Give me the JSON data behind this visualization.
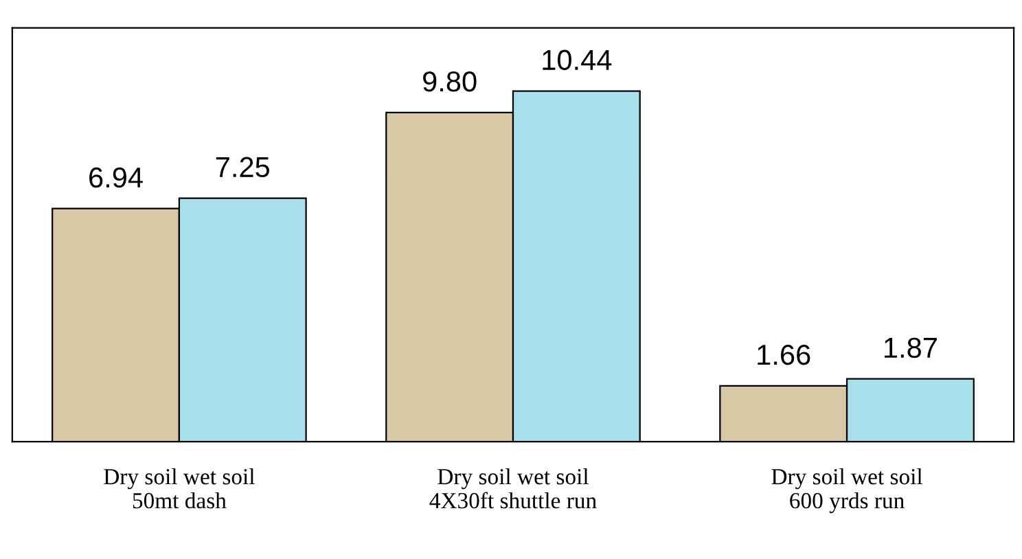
{
  "chart_data": {
    "type": "bar",
    "categories": [
      "Dry soil wet soil\n50mt dash",
      "Dry soil wet soil\n4X30ft shuttle run",
      "Dry soil wet soil\n600 yrds run"
    ],
    "series": [
      {
        "color": "#d8c8a6",
        "values": [
          6.94,
          9.8,
          1.66
        ],
        "value_labels": [
          "6.94",
          "9.80",
          "1.66"
        ]
      },
      {
        "color": "#a9dfea",
        "values": [
          7.25,
          10.44,
          1.87
        ],
        "value_labels": [
          "7.25",
          "10.44",
          "1.87"
        ]
      }
    ],
    "tick_labels": "x"
  }
}
